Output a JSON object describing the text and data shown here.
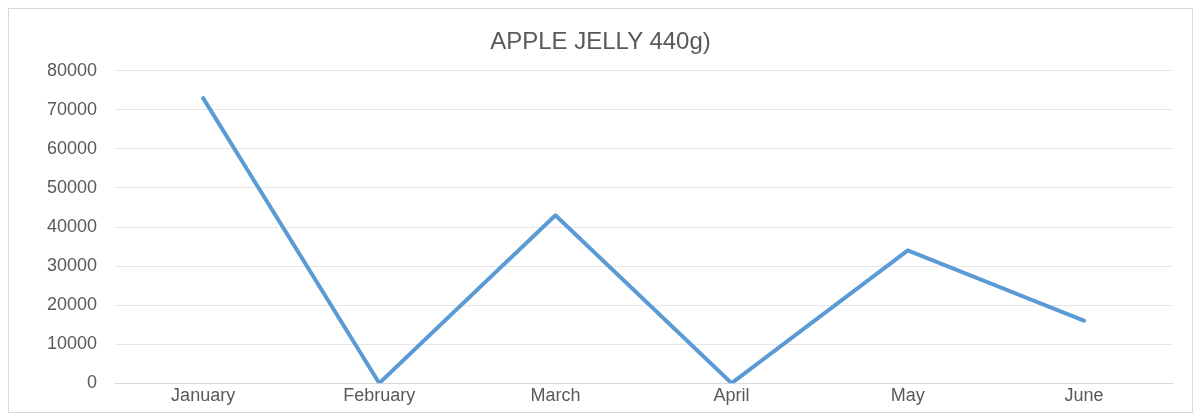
{
  "chart_data": {
    "type": "line",
    "title": "APPLE JELLY 440g)",
    "categories": [
      "January",
      "February",
      "March",
      "April",
      "May",
      "June"
    ],
    "series": [
      {
        "color": "#5b9bd5",
        "values": [
          73000,
          0,
          43000,
          0,
          34000,
          16000
        ]
      }
    ],
    "ylim": [
      0,
      80000
    ],
    "yticks": [
      0,
      10000,
      20000,
      30000,
      40000,
      50000,
      60000,
      70000,
      80000
    ],
    "grid": "y",
    "legend": false,
    "marker": "none",
    "line_style": "solid"
  }
}
